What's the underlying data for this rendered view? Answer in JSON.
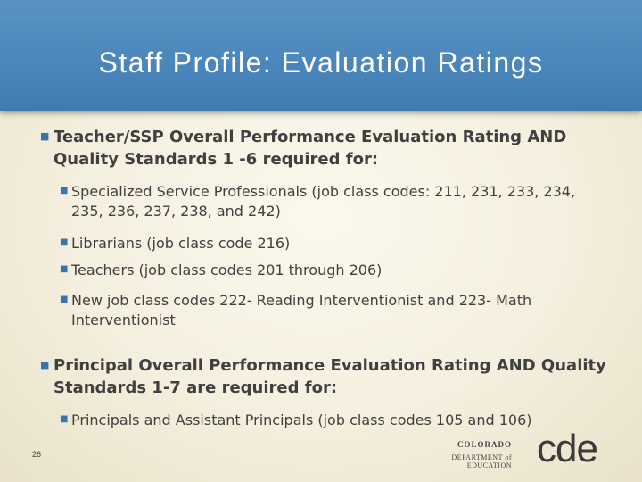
{
  "slide": {
    "title": "Staff Profile: Evaluation Ratings",
    "page_number": "26"
  },
  "bullets": [
    {
      "text": "Teacher/SSP Overall Performance Evaluation Rating AND Quality Standards 1 -6 required for:",
      "sub": [
        "Specialized Service Professionals   (job class codes: 211, 231, 233, 234, 235, 236, 237, 238, and 242)",
        "Librarians (job class code 216)",
        "Teachers (job class codes 201 through 206)",
        "New job class codes 222- Reading Interventionist and 223- Math Interventionist"
      ]
    },
    {
      "text": "Principal Overall Performance Evaluation Rating AND Quality Standards 1-7 are required for:",
      "sub": [
        "Principals and Assistant Principals (job class codes 105 and 106)"
      ]
    }
  ],
  "logo": {
    "line1": "COLORADO",
    "line2": "DEPARTMENT of EDUCATION",
    "mark": "cde"
  },
  "colors": {
    "header": "#4a86bb",
    "background": "#f4efde",
    "bullet": "#3a73ad",
    "text": "#404040"
  }
}
